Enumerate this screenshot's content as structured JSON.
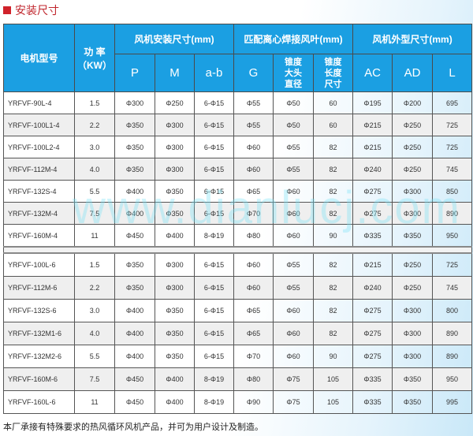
{
  "section_title": "安装尺寸",
  "watermark": "www.dianlucj.com",
  "header": {
    "model": "电机型号",
    "power": "功 率",
    "power_unit": "（KW）",
    "group_install": "风机安装尺寸(mm)",
    "group_impeller": "匹配离心焊接风叶(mm)",
    "group_outer": "风机外型尺寸(mm)",
    "cols": [
      "P",
      "M",
      "a-b",
      "G",
      "锥度大头直径",
      "锥度长度尺寸",
      "AC",
      "AD",
      "L"
    ]
  },
  "group1": [
    [
      "YRFVF-90L-4",
      "1.5",
      "Φ300",
      "Φ250",
      "6-Φ15",
      "Φ55",
      "Φ50",
      "60",
      "Φ195",
      "Φ200",
      "695"
    ],
    [
      "YRFVF-100L1-4",
      "2.2",
      "Φ350",
      "Φ300",
      "6-Φ15",
      "Φ55",
      "Φ50",
      "60",
      "Φ215",
      "Φ250",
      "725"
    ],
    [
      "YRFVF-100L2-4",
      "3.0",
      "Φ350",
      "Φ300",
      "6-Φ15",
      "Φ60",
      "Φ55",
      "82",
      "Φ215",
      "Φ250",
      "725"
    ],
    [
      "YRFVF-112M-4",
      "4.0",
      "Φ350",
      "Φ300",
      "6-Φ15",
      "Φ60",
      "Φ55",
      "82",
      "Φ240",
      "Φ250",
      "745"
    ],
    [
      "YRFVF-132S-4",
      "5.5",
      "Φ400",
      "Φ350",
      "6-Φ15",
      "Φ65",
      "Φ60",
      "82",
      "Φ275",
      "Φ300",
      "850"
    ],
    [
      "YRFVF-132M-4",
      "7.5",
      "Φ400",
      "Φ350",
      "6-Φ15",
      "Φ70",
      "Φ60",
      "82",
      "Φ275",
      "Φ300",
      "890"
    ],
    [
      "YRFVF-160M-4",
      "11",
      "Φ450",
      "Φ400",
      "8-Φ19",
      "Φ80",
      "Φ60",
      "90",
      "Φ335",
      "Φ350",
      "950"
    ]
  ],
  "group2": [
    [
      "YRFVF-100L-6",
      "1.5",
      "Φ350",
      "Φ300",
      "6-Φ15",
      "Φ60",
      "Φ55",
      "82",
      "Φ215",
      "Φ250",
      "725"
    ],
    [
      "YRFVF-112M-6",
      "2.2",
      "Φ350",
      "Φ300",
      "6-Φ15",
      "Φ60",
      "Φ55",
      "82",
      "Φ240",
      "Φ250",
      "745"
    ],
    [
      "YRFVF-132S-6",
      "3.0",
      "Φ400",
      "Φ350",
      "6-Φ15",
      "Φ65",
      "Φ60",
      "82",
      "Φ275",
      "Φ300",
      "800"
    ],
    [
      "YRFVF-132M1-6",
      "4.0",
      "Φ400",
      "Φ350",
      "6-Φ15",
      "Φ65",
      "Φ60",
      "82",
      "Φ275",
      "Φ300",
      "890"
    ],
    [
      "YRFVF-132M2-6",
      "5.5",
      "Φ400",
      "Φ350",
      "6-Φ15",
      "Φ70",
      "Φ60",
      "90",
      "Φ275",
      "Φ300",
      "890"
    ],
    [
      "YRFVF-160M-6",
      "7.5",
      "Φ450",
      "Φ400",
      "8-Φ19",
      "Φ80",
      "Φ75",
      "105",
      "Φ335",
      "Φ350",
      "950"
    ],
    [
      "YRFVF-160L-6",
      "11",
      "Φ450",
      "Φ400",
      "8-Φ19",
      "Φ90",
      "Φ75",
      "105",
      "Φ335",
      "Φ350",
      "995"
    ]
  ],
  "footnote": "本厂承接有特殊要求的热风循环风机产品，并可为用户设计及制造。",
  "colors": {
    "header_bg": "#1b9fe2",
    "title_red": "#c0262d",
    "alt_row": "#efefef"
  }
}
